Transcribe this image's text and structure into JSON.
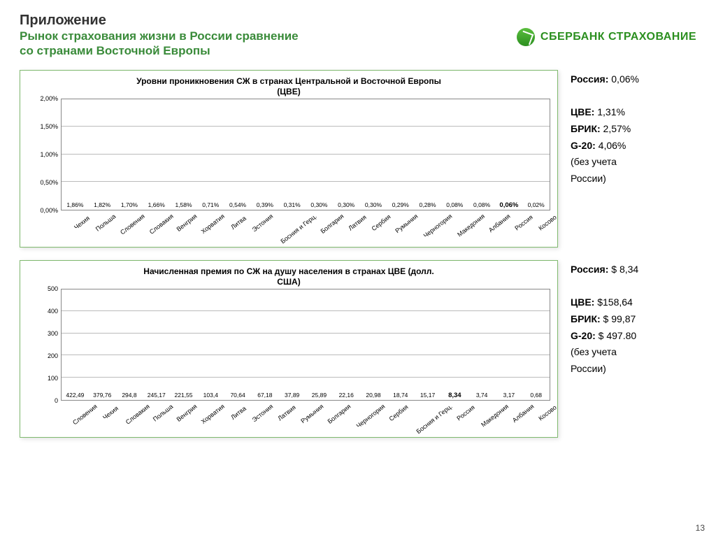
{
  "header": {
    "title": "Приложение",
    "subtitle_line1": "Рынок страхования жизни в России сравнение",
    "subtitle_line2": "со странами Восточной  Европы",
    "logo_text": "СБЕРБАНК СТРАХОВАНИЕ",
    "logo_color": "#2b8f1f"
  },
  "chart1": {
    "type": "bar",
    "title_line1": "Уровни проникновения СЖ в странах Центральной и Восточной Европы",
    "title_line2": "(ЦВЕ)",
    "ylabel_fmt_suffix": "%",
    "ylim": [
      0,
      2.0
    ],
    "ytick_step": 0.5,
    "yticks": [
      "0,00%",
      "0,50%",
      "1,00%",
      "1,50%",
      "2,00%"
    ],
    "bar_gradient_top": "#2db02d",
    "bar_gradient_bottom": "#0b4d12",
    "grid_color": "#bbbbbb",
    "border_color": "#888888",
    "box_border_color": "#7fb96e",
    "background_color": "#ffffff",
    "title_fontsize": 12,
    "tick_fontsize": 9,
    "bar_label_fontsize": 8.5,
    "bar_width_ratio": 0.58,
    "highlight_index": 16,
    "data": [
      {
        "label": "Чехия",
        "value": 1.86,
        "value_str": "1,86%"
      },
      {
        "label": "Польша",
        "value": 1.82,
        "value_str": "1,82%"
      },
      {
        "label": "Словения",
        "value": 1.7,
        "value_str": "1,70%"
      },
      {
        "label": "Словакия",
        "value": 1.66,
        "value_str": "1,66%"
      },
      {
        "label": "Венгрия",
        "value": 1.58,
        "value_str": "1,58%"
      },
      {
        "label": "Хорватия",
        "value": 0.71,
        "value_str": "0,71%"
      },
      {
        "label": "Литва",
        "value": 0.54,
        "value_str": "0,54%"
      },
      {
        "label": "Эстония",
        "value": 0.39,
        "value_str": "0,39%"
      },
      {
        "label": "Босния и Герц.",
        "value": 0.31,
        "value_str": "0,31%"
      },
      {
        "label": "Болгария",
        "value": 0.3,
        "value_str": "0,30%"
      },
      {
        "label": "Латвия",
        "value": 0.3,
        "value_str": "0,30%"
      },
      {
        "label": "Сербия",
        "value": 0.3,
        "value_str": "0,30%"
      },
      {
        "label": "Румыния",
        "value": 0.29,
        "value_str": "0,29%"
      },
      {
        "label": "Черногория",
        "value": 0.28,
        "value_str": "0,28%"
      },
      {
        "label": "Македония",
        "value": 0.08,
        "value_str": "0,08%"
      },
      {
        "label": "Албания",
        "value": 0.08,
        "value_str": "0,08%"
      },
      {
        "label": "Россия",
        "value": 0.06,
        "value_str": "0,06%"
      },
      {
        "label": "Косово",
        "value": 0.02,
        "value_str": "0,02%"
      }
    ]
  },
  "side1": {
    "lines": [
      {
        "bold": "Россия:",
        "text": " 0,06%"
      },
      {
        "spacer": true
      },
      {
        "bold": "ЦВЕ:",
        "text": " 1,31%"
      },
      {
        "bold": "БРИК:",
        "text": " 2,57%"
      },
      {
        "bold": "G-20:",
        "text": " 4,06%"
      },
      {
        "text": "(без учета"
      },
      {
        "text": "России)"
      }
    ]
  },
  "chart2": {
    "type": "bar",
    "title_line1": "Начисленная премия по СЖ на душу населения в странах ЦВЕ (долл.",
    "title_line2": "США)",
    "ylim": [
      0,
      500
    ],
    "ytick_step": 100,
    "yticks": [
      "0",
      "100",
      "200",
      "300",
      "400",
      "500"
    ],
    "bar_gradient_top": "#2db02d",
    "bar_gradient_bottom": "#0b4d12",
    "grid_color": "#bbbbbb",
    "border_color": "#888888",
    "box_border_color": "#7fb96e",
    "background_color": "#ffffff",
    "title_fontsize": 12,
    "tick_fontsize": 9,
    "bar_label_fontsize": 8.5,
    "bar_width_ratio": 0.58,
    "highlight_index": 14,
    "data": [
      {
        "label": "Словения",
        "value": 422.49,
        "value_str": "422,49"
      },
      {
        "label": "Чехия",
        "value": 379.76,
        "value_str": "379,76"
      },
      {
        "label": "Словакия",
        "value": 294.8,
        "value_str": "294,8"
      },
      {
        "label": "Польша",
        "value": 245.17,
        "value_str": "245,17"
      },
      {
        "label": "Венгрия",
        "value": 221.55,
        "value_str": "221,55"
      },
      {
        "label": "Хорватия",
        "value": 103.4,
        "value_str": "103,4"
      },
      {
        "label": "Литва",
        "value": 70.64,
        "value_str": "70,64"
      },
      {
        "label": "Эстония",
        "value": 67.18,
        "value_str": "67,18"
      },
      {
        "label": "Латвия",
        "value": 37.89,
        "value_str": "37,89"
      },
      {
        "label": "Румыния",
        "value": 25.89,
        "value_str": "25,89"
      },
      {
        "label": "Болгария",
        "value": 22.16,
        "value_str": "22,16"
      },
      {
        "label": "Черногория",
        "value": 20.98,
        "value_str": "20,98"
      },
      {
        "label": "Сербия",
        "value": 18.74,
        "value_str": "18,74"
      },
      {
        "label": "Босния и Герц.",
        "value": 15.17,
        "value_str": "15,17"
      },
      {
        "label": "Россия",
        "value": 8.34,
        "value_str": "8,34"
      },
      {
        "label": "Македония",
        "value": 3.74,
        "value_str": "3,74"
      },
      {
        "label": "Албания",
        "value": 3.17,
        "value_str": "3,17"
      },
      {
        "label": "Косово",
        "value": 0.68,
        "value_str": "0,68"
      }
    ]
  },
  "side2": {
    "lines": [
      {
        "bold": "Россия:",
        "text": " $ 8,34"
      },
      {
        "spacer": true
      },
      {
        "bold": "ЦВЕ:",
        "text": " $158,64"
      },
      {
        "bold": "БРИК:",
        "text": " $ 99,87"
      },
      {
        "bold": "G-20:",
        "text": " $ 497.80"
      },
      {
        "text": "(без учета"
      },
      {
        "text": "России)"
      }
    ]
  },
  "page_number": "13",
  "colors": {
    "title_sub_color": "#3a8b3a",
    "text_color": "#333333"
  }
}
